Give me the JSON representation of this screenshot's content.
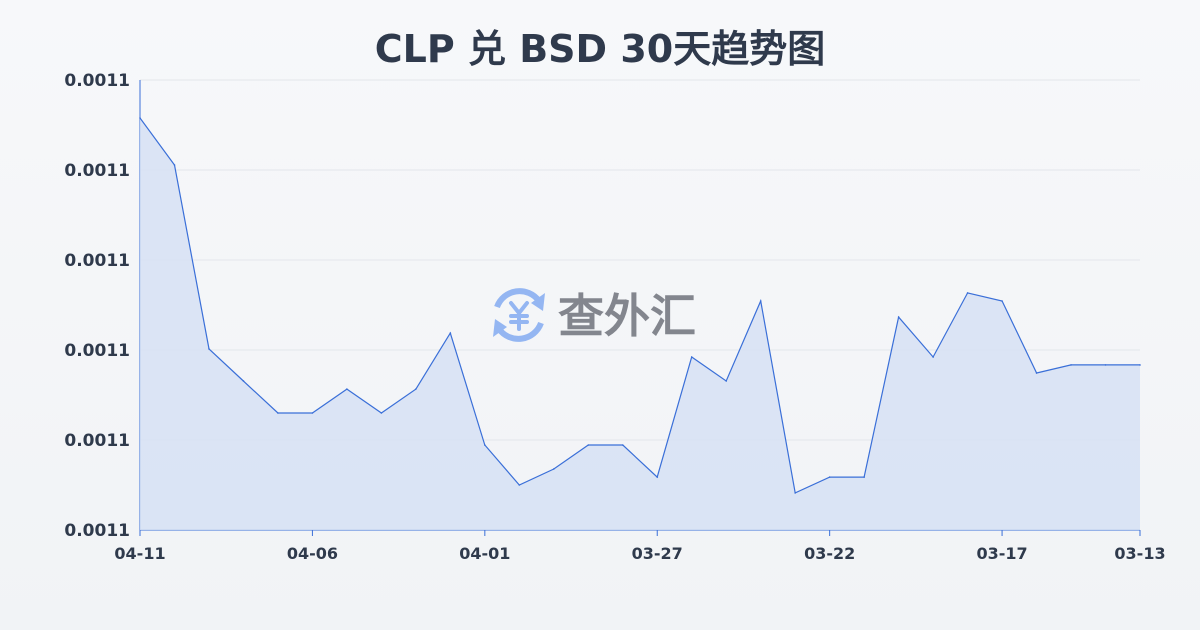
{
  "chart_data": {
    "type": "area",
    "title": "CLP 兑 BSD 30天趋势图",
    "xlabel": "",
    "ylabel": "",
    "x": [
      "04-11",
      "04-10",
      "04-09",
      "04-08",
      "04-07",
      "04-06",
      "04-05",
      "04-04",
      "04-03",
      "04-02",
      "04-01",
      "03-31",
      "03-30",
      "03-29",
      "03-28",
      "03-27",
      "03-26",
      "03-25",
      "03-24",
      "03-23",
      "03-22",
      "03-21",
      "03-20",
      "03-19",
      "03-18",
      "03-17",
      "03-16",
      "03-15",
      "03-14",
      "03-13"
    ],
    "x_tick_labels": [
      "04-11",
      "04-06",
      "04-01",
      "03-27",
      "03-22",
      "03-17",
      "03-13"
    ],
    "x_tick_indices": [
      0,
      5,
      10,
      15,
      20,
      25,
      29
    ],
    "values": [
      0.00112289,
      0.00112028,
      0.00111006,
      0.00110828,
      0.0011065,
      0.0011065,
      0.00110783,
      0.0011065,
      0.00110783,
      0.00111094,
      0.00110472,
      0.0011025,
      0.00110339,
      0.00110472,
      0.00110472,
      0.00110294,
      0.00110961,
      0.00110828,
      0.00111272,
      0.00110206,
      0.00110294,
      0.00110294,
      0.00111183,
      0.00110961,
      0.00111317,
      0.00111272,
      0.00110872,
      0.00110917,
      0.00110917,
      0.00110917
    ],
    "ylim": [
      0.0011,
      0.001125
    ],
    "y_ticks": [
      0.0011,
      0.001105,
      0.00111,
      0.001115,
      0.00112,
      0.001125
    ],
    "y_tick_labels": [
      "0.0011",
      "0.0011",
      "0.0011",
      "0.0011",
      "0.0011",
      "0.0011"
    ],
    "grid": true,
    "colors": {
      "line": "#3a6fd8",
      "fill": "#d6e0f5",
      "grid": "#e3e6eb",
      "text": "#2f3a4c"
    }
  },
  "watermark": {
    "text": "查外汇",
    "icon": "yen-exchange-icon",
    "icon_color": "#8fb3f2",
    "text_color": "#7d8189"
  }
}
